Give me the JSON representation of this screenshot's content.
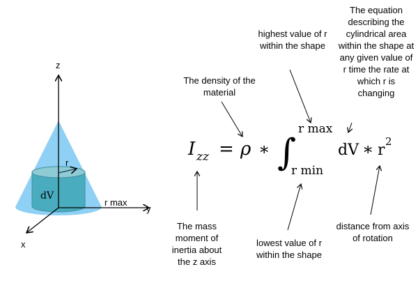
{
  "figure": {
    "axis_labels": {
      "z": "z",
      "y": "y",
      "x": "x"
    },
    "r_label": "r",
    "dv_label": "dV",
    "rmax_label": "r max",
    "colors": {
      "cone": "#8fd0f5",
      "cylinder": "#4aacbf",
      "cylinder_top": "#8fcbd4"
    }
  },
  "equation": {
    "lhs": "I",
    "lhs_sub": "zz",
    "equals": "=",
    "rho": "ρ",
    "times": "∗",
    "integral": "∫",
    "upper": "r max",
    "lower": "r min",
    "dv": "dV",
    "times2": "∗",
    "r": "r",
    "power": "2"
  },
  "annotations": {
    "density": "The density of the material",
    "upper_limit": "highest value of r within the shape",
    "dv_desc": "The equation describing the cylindrical area within the shape at any given value of r time the rate at which r is changing",
    "inertia": "The mass moment of inertia about the z axis",
    "lower_limit": "lowest value of r within the shape",
    "distance": "distance from axis of rotation"
  }
}
